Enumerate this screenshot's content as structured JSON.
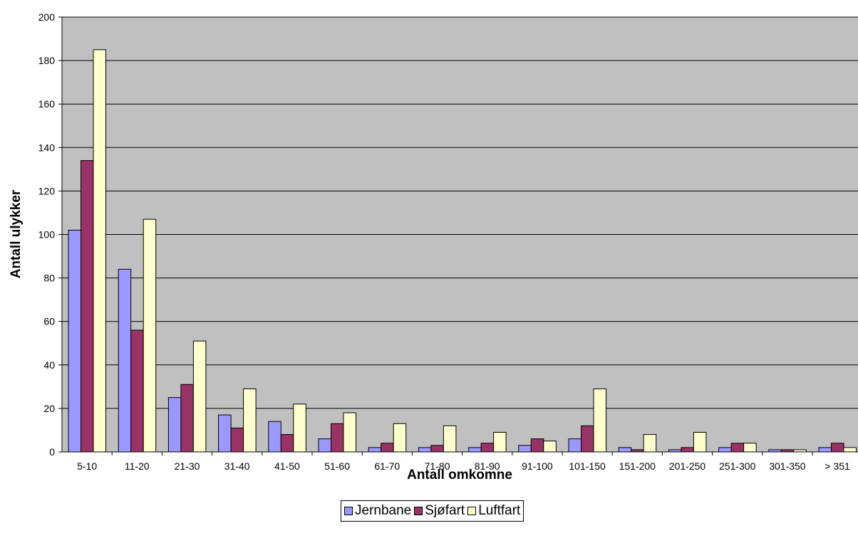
{
  "chart_data": {
    "type": "bar",
    "xlabel": "Antall omkomne",
    "ylabel": "Antall ulykker",
    "ylim": [
      0,
      200
    ],
    "yticks": [
      0,
      20,
      40,
      60,
      80,
      100,
      120,
      140,
      160,
      180,
      200
    ],
    "grid": true,
    "legend_position": "bottom",
    "plot_background": "#c0c0c0",
    "categories": [
      "5-10",
      "11-20",
      "21-30",
      "31-40",
      "41-50",
      "51-60",
      "61-70",
      "71-80",
      "81-90",
      "91-100",
      "101-150",
      "151-200",
      "201-250",
      "251-300",
      "301-350",
      "> 351"
    ],
    "series": [
      {
        "name": "Jernbane",
        "color": "#9999ff",
        "values": [
          102,
          84,
          25,
          17,
          14,
          6,
          2,
          2,
          2,
          3,
          6,
          2,
          1,
          2,
          1,
          2
        ]
      },
      {
        "name": "Sjøfart",
        "color": "#993366",
        "values": [
          134,
          56,
          31,
          11,
          8,
          13,
          4,
          3,
          4,
          6,
          12,
          1,
          2,
          4,
          1,
          4
        ]
      },
      {
        "name": "Luftfart",
        "color": "#ffffcc",
        "values": [
          185,
          107,
          51,
          29,
          22,
          18,
          13,
          12,
          9,
          5,
          29,
          8,
          9,
          4,
          1,
          2
        ]
      }
    ]
  }
}
